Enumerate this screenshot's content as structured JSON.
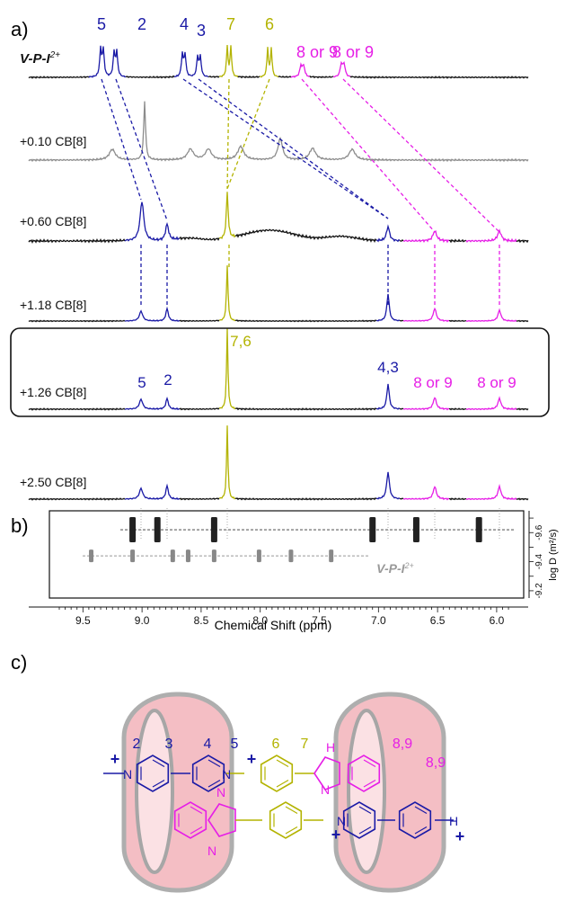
{
  "panels": {
    "a": "a)",
    "b": "b)",
    "c": "c)"
  },
  "colors": {
    "blue": "#1a1aa6",
    "olive": "#b3b300",
    "magenta": "#e61ee6",
    "gray": "#8c8c8c",
    "black": "#111111",
    "ring_fill": "#f3b8be",
    "ring_edge": "#a6a6a6"
  },
  "panel_a": {
    "top_peak_labels": [
      "5",
      "2",
      "4",
      "3",
      "7",
      "6",
      "8 or 9",
      "8 or 9"
    ],
    "boxed_peak_labels": [
      "7,6",
      "5",
      "2",
      "4,3",
      "8 or 9",
      "8 or 9"
    ],
    "traces": [
      {
        "label": "V-P-I",
        "label_sup": "2+",
        "color": "mixed"
      },
      {
        "label": "+0.10 CB[8]",
        "color": "gray"
      },
      {
        "label": "+0.60 CB[8]",
        "color": "mixed"
      },
      {
        "label": "+1.18 CB[8]",
        "color": "mixed"
      },
      {
        "label": "+1.26 CB[8]",
        "color": "mixed",
        "boxed": true
      },
      {
        "label": "+2.50 CB[8]",
        "color": "mixed"
      }
    ]
  },
  "panel_b": {
    "xlabel": "Chemical Shift (ppm)",
    "ylabel": "log D (m²/s)",
    "xticks": [
      "9.5",
      "9.0",
      "8.5",
      "8.0",
      "7.5",
      "7.0",
      "6.5",
      "6.0"
    ],
    "yticks": [
      "-9.6",
      "-9.4",
      "-9.2"
    ],
    "series_label": "V-P-I",
    "series_label_sup": "2+"
  },
  "panel_c": {
    "labels_top": [
      "2",
      "3",
      "4",
      "5",
      "6",
      "7",
      "8,9",
      "8,9"
    ],
    "atom_labels": [
      "N",
      "N",
      "H",
      "N",
      "N",
      "N",
      "N",
      "H",
      "N"
    ],
    "charges": [
      "+",
      "+",
      "+",
      "+"
    ]
  },
  "chart_data": {
    "type": "scatter",
    "title": "",
    "xlabel": "Chemical Shift (ppm)",
    "ylabel": "log D (m²/s)",
    "xlim": [
      9.7,
      5.9
    ],
    "ylim": [
      -9.75,
      -9.15
    ],
    "x_reversed": true,
    "y_reversed": true,
    "series": [
      {
        "name": "",
        "x": [
          9.08,
          8.87,
          8.39,
          7.05,
          6.68,
          6.15
        ],
        "y": [
          -9.62,
          -9.62,
          -9.62,
          -9.62,
          -9.62,
          -9.62
        ]
      },
      {
        "name": "V-P-I2+",
        "x": [
          9.43,
          9.08,
          8.74,
          8.61,
          8.39,
          8.01,
          7.74,
          7.4
        ],
        "y": [
          -9.44,
          -9.44,
          -9.44,
          -9.44,
          -9.44,
          -9.44,
          -9.44,
          -9.44
        ]
      }
    ]
  }
}
